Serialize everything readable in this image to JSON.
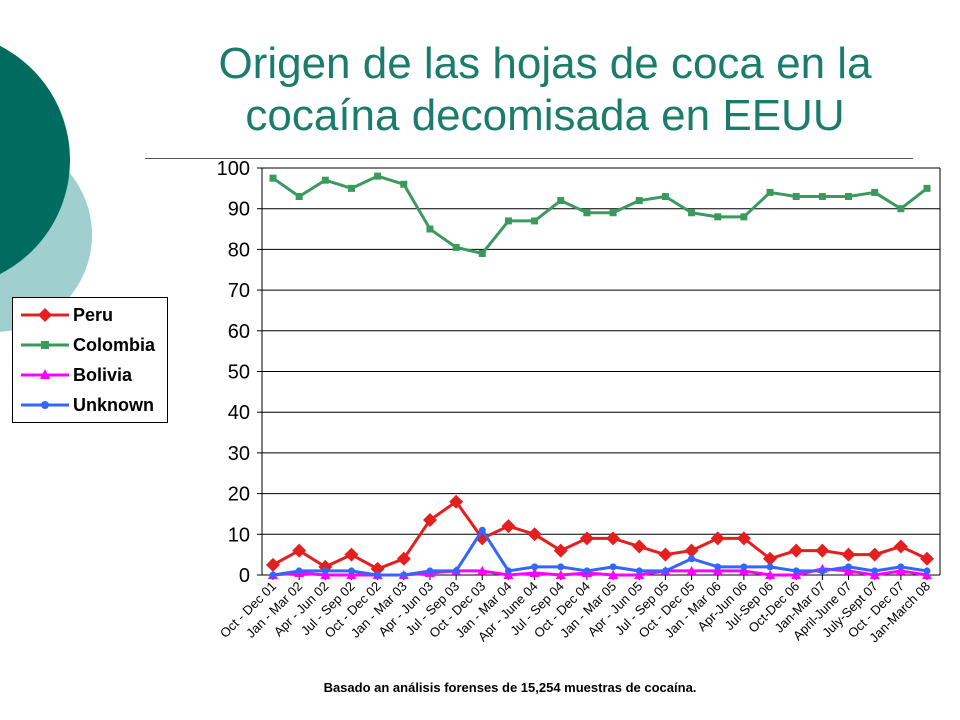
{
  "slide": {
    "title": "Origen de las hojas de coca en la cocaína decomisada en EEUU",
    "footnote": "Basado an análisis forenses de 15,254 muestras de cocaína."
  },
  "colors": {
    "title": "#1b7c6c",
    "deco_dark": "#006b5f",
    "deco_light": "#9fcfcf"
  },
  "chart_data": {
    "type": "line",
    "title": "",
    "xlabel": "",
    "ylabel": "",
    "ylim": [
      0,
      100
    ],
    "yticks": [
      0,
      10,
      20,
      30,
      40,
      50,
      60,
      70,
      80,
      90,
      100
    ],
    "grid": true,
    "legend_position": "left",
    "categories": [
      "Oct - Dec 01",
      "Jan - Mar 02",
      "Apr - Jun  02",
      "Jul - Sep 02",
      "Oct - Dec 02",
      "Jan - Mar 03",
      "Apr - Jun  03",
      "Jul - Sep 03",
      "Oct - Dec 03",
      "Jan - Mar 04",
      "Apr - June 04",
      "Jul - Sep 04",
      "Oct - Dec 04",
      "Jan - Mar 05",
      "Apr - Jun 05",
      "Jul - Sep 05",
      "Oct - Dec 05",
      "Jan - Mar 06",
      "Apr-Jun 06",
      "Jul-Sep 06",
      "Oct-Dec 06",
      "Jan-Mar 07",
      "April-June 07",
      "July-Sept 07",
      "Oct - Dec 07",
      "Jan-March 08"
    ],
    "series": [
      {
        "name": "Peru",
        "color": "#e41f1f",
        "marker": "diamond",
        "values": [
          2.5,
          6,
          2,
          5,
          1.5,
          4,
          13.5,
          18,
          9,
          12,
          10,
          6,
          9,
          9,
          7,
          5,
          6,
          9,
          9,
          4,
          6,
          6,
          5,
          5,
          7,
          4
        ]
      },
      {
        "name": "Colombia",
        "color": "#3a9a5e",
        "marker": "square",
        "values": [
          97.5,
          93,
          97,
          95,
          98,
          96,
          85,
          80.5,
          79,
          87,
          87,
          92,
          89,
          89,
          92,
          93,
          89,
          88,
          88,
          94,
          93,
          93,
          93,
          94,
          90,
          95
        ]
      },
      {
        "name": "Bolivia",
        "color": "#ff00ff",
        "marker": "triangle",
        "values": [
          0,
          0.5,
          0,
          0,
          0,
          0,
          0.5,
          1,
          1,
          0,
          0.5,
          0,
          0.5,
          0,
          0,
          1,
          1,
          1,
          1,
          0,
          0,
          1.5,
          1,
          0,
          1,
          0
        ]
      },
      {
        "name": "Unknown",
        "color": "#3366ff",
        "marker": "circle",
        "values": [
          0,
          1,
          1,
          1,
          0,
          0,
          1,
          1,
          11,
          1,
          2,
          2,
          1,
          2,
          1,
          1,
          4,
          2,
          2,
          2,
          1,
          1,
          2,
          1,
          2,
          1
        ]
      }
    ]
  }
}
